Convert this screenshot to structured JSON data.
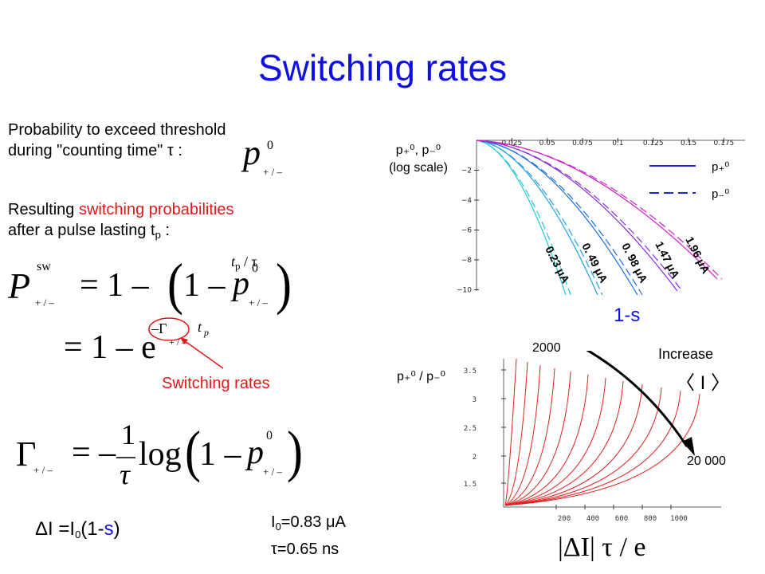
{
  "title": "Switching rates",
  "left": {
    "line1": "Probability to exceed threshold",
    "line2": "during \"counting time\" τ :",
    "line3a": "Resulting ",
    "line3b": "switching probabilities",
    "line4a": "after a pulse lasting t",
    "line4b": "p",
    "line4c": " :",
    "switching_rates_label": "Switching rates",
    "delta_i": "ΔI =I",
    "delta_i_sub": "0",
    "delta_i_rest": "(1-",
    "delta_i_s": "s",
    "delta_i_close": ")",
    "i0": "I",
    "i0_sub": "0",
    "i0_val": "=0.83 μA",
    "tau": "τ=0.65 ns"
  },
  "formulas": {
    "p": "p",
    "sup0": "0",
    "sub_pm": "+ / –",
    "P": "P",
    "sw": "sw",
    "eq1": "= 1 – ",
    "one_minus": "1 – ",
    "tp_over_tau": "t",
    "tp_p": "p",
    "over_tau": " / τ",
    "eq2": "= 1 – e",
    "gamma": "Γ",
    "gamma_exp": "–Γ",
    "t": "t",
    "eq3": "= –",
    "one": "1",
    "tau_sym": "τ",
    "log": "log",
    "close": ")"
  },
  "top_chart": {
    "ylabel_line1": "p₊⁰, p₋⁰",
    "ylabel_line2": "(log scale)",
    "x_ticks": [
      "0.025",
      "0.05",
      "0.075",
      "0.1",
      "0.125",
      "0.15",
      "0.175"
    ],
    "y_ticks": [
      "−2",
      "−4",
      "−6",
      "−8",
      "−10"
    ],
    "legend": [
      {
        "label": "p₊⁰",
        "style": "solid"
      },
      {
        "label": "p₋⁰",
        "style": "dashed"
      }
    ],
    "curve_labels": [
      "0.23 μA",
      "0. 49 μA",
      "0. 98 μA",
      "1.47 μA",
      "1.96 μA"
    ],
    "colors": [
      "#22c8d8",
      "#1ea0e0",
      "#1a6ee0",
      "#8a2ad8",
      "#d020c8"
    ],
    "axis_label": "1-s"
  },
  "bottom_chart": {
    "ylabel": "p₊⁰ / p₋⁰",
    "x_ticks": [
      "200",
      "400",
      "600",
      "800",
      "1000"
    ],
    "y_ticks": [
      "3.5",
      "3",
      "2.5",
      "2",
      "1.5"
    ],
    "annotation_start": "2000",
    "annotation_end": "20 000",
    "increase": "Increase",
    "increase_i": "〈 I 〉",
    "curve_color": "#e02020",
    "x_axis_formula": "|ΔI| τ / e"
  }
}
